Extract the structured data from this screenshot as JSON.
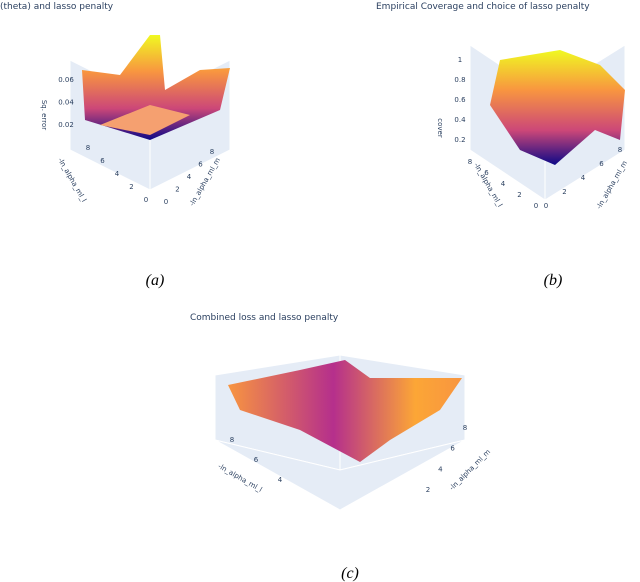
{
  "panels": [
    {
      "title": "(theta) and lasso penalty",
      "caption": "(a)",
      "z_axis": {
        "label": "Sq. error",
        "ticks": [
          "0.06",
          "0.04",
          "0.02"
        ]
      },
      "x_axis": {
        "label": "-ln_alpha_ml_l",
        "ticks": [
          "8",
          "6",
          "4",
          "2",
          "0"
        ]
      },
      "y_axis": {
        "label": "-ln_alpha_ml_m",
        "ticks": [
          "8",
          "6",
          "4",
          "2",
          "0"
        ]
      }
    },
    {
      "title": "Empirical Coverage and choice of lasso penalty",
      "caption": "(b)",
      "z_axis": {
        "label": "cover",
        "ticks": [
          "1",
          "0.8",
          "0.6",
          "0.4",
          "0.2"
        ]
      },
      "x_axis": {
        "label": "-ln_alpha_ml_l",
        "ticks": [
          "8",
          "6",
          "4",
          "2",
          "0"
        ]
      },
      "y_axis": {
        "label": "-ln_alpha_ml_m",
        "ticks": [
          "8",
          "6",
          "4",
          "2",
          "0"
        ]
      }
    },
    {
      "title": "Combined loss and lasso penalty",
      "caption": "(c)",
      "x_axis": {
        "label": "-ln_alpha_ml_l",
        "ticks": [
          "8",
          "6",
          "4"
        ]
      },
      "y_axis": {
        "label": "-ln_alpha_ml_m",
        "ticks": [
          "8",
          "6",
          "4",
          "2"
        ]
      }
    }
  ]
}
